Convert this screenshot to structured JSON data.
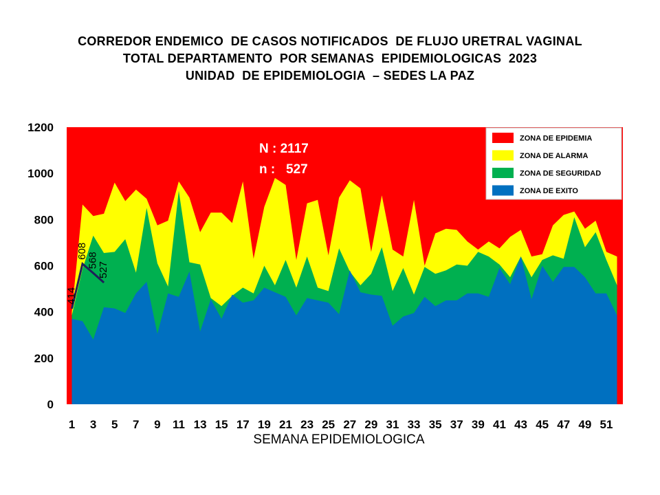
{
  "title_lines": [
    "CORREDOR ENDEMICO  DE CASOS NOTIFICADOS  DE FLUJO URETRAL VAGINAL",
    "TOTAL DEPARTAMENTO  POR SEMANAS  EPIDEMIOLOGICAS  2023",
    "UNIDAD  DE EPIDEMIOLOGIA  – SEDES LA PAZ"
  ],
  "stats": {
    "N": "N : 2117",
    "n": "n :   527"
  },
  "chart_data": {
    "type": "area",
    "xlabel": "SEMANA EPIDEMIOLOGICA",
    "ylabel": "",
    "ylim": [
      0,
      1200
    ],
    "yticks": [
      0,
      200,
      400,
      600,
      800,
      1000,
      1200
    ],
    "xlim": [
      1,
      52
    ],
    "xticks": [
      1,
      3,
      5,
      7,
      9,
      11,
      13,
      15,
      17,
      19,
      21,
      23,
      25,
      27,
      29,
      31,
      33,
      35,
      37,
      39,
      41,
      43,
      45,
      47,
      49,
      51
    ],
    "grid": false,
    "legend_position": "top-right",
    "background_zone": {
      "name": "ZONA DE EPIDEMIA",
      "color": "#ff0000"
    },
    "x": [
      1,
      2,
      3,
      4,
      5,
      6,
      7,
      8,
      9,
      10,
      11,
      12,
      13,
      14,
      15,
      16,
      17,
      18,
      19,
      20,
      21,
      22,
      23,
      24,
      25,
      26,
      27,
      28,
      29,
      30,
      31,
      32,
      33,
      34,
      35,
      36,
      37,
      38,
      39,
      40,
      41,
      42,
      43,
      44,
      45,
      46,
      47,
      48,
      49,
      50,
      51,
      52
    ],
    "series": [
      {
        "name": "ZONA DE ALARMA",
        "color": "#ffff00",
        "values": [
          400,
          865,
          815,
          825,
          960,
          880,
          930,
          890,
          775,
          795,
          965,
          895,
          745,
          830,
          830,
          785,
          965,
          630,
          855,
          980,
          950,
          625,
          870,
          885,
          645,
          895,
          970,
          935,
          660,
          905,
          670,
          640,
          885,
          600,
          740,
          760,
          755,
          705,
          670,
          705,
          675,
          725,
          755,
          640,
          650,
          775,
          820,
          835,
          760,
          795,
          660,
          640
        ]
      },
      {
        "name": "ZONA DE SEGURIDAD",
        "color": "#00b050",
        "values": [
          385,
          585,
          730,
          655,
          660,
          715,
          570,
          850,
          610,
          510,
          925,
          615,
          605,
          460,
          425,
          470,
          505,
          480,
          600,
          515,
          625,
          505,
          640,
          505,
          490,
          675,
          575,
          515,
          565,
          680,
          490,
          590,
          475,
          595,
          565,
          580,
          605,
          600,
          660,
          640,
          605,
          550,
          640,
          550,
          625,
          645,
          630,
          810,
          680,
          745,
          625,
          515
        ]
      },
      {
        "name": "ZONA DE EXITO",
        "color": "#0070c0",
        "values": [
          370,
          360,
          280,
          420,
          415,
          395,
          480,
          530,
          305,
          480,
          465,
          575,
          315,
          455,
          370,
          475,
          440,
          450,
          505,
          485,
          465,
          385,
          460,
          450,
          440,
          390,
          580,
          485,
          475,
          470,
          340,
          380,
          395,
          465,
          425,
          450,
          450,
          480,
          480,
          465,
          590,
          520,
          640,
          455,
          600,
          530,
          595,
          595,
          550,
          480,
          480,
          385
        ]
      }
    ],
    "current_year": {
      "name": "2023",
      "x": [
        1,
        2,
        3,
        4
      ],
      "values": [
        414,
        608,
        568,
        527
      ],
      "labels": [
        "414",
        "608",
        "568",
        "527"
      ]
    }
  }
}
